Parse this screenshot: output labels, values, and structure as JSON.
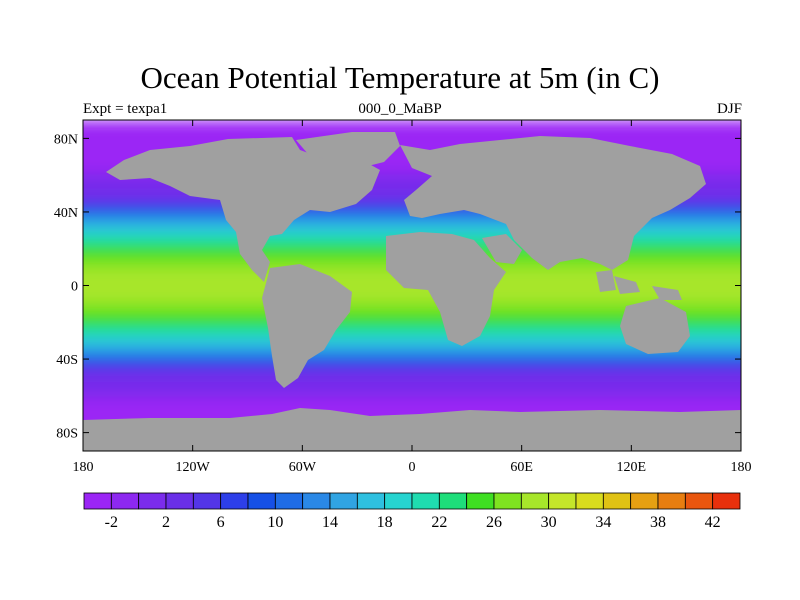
{
  "title": "Ocean Potential Temperature at 5m (in C)",
  "subtitle_left": "Expt = texpa1",
  "subtitle_center": "000_0_MaBP",
  "subtitle_right": "DJF",
  "map": {
    "lat_labels": [
      "80N",
      "40N",
      "0",
      "40S",
      "80S"
    ],
    "lat_values": [
      80,
      40,
      0,
      -40,
      -80
    ],
    "lon_labels": [
      "180",
      "120W",
      "60W",
      "0",
      "60E",
      "120E",
      "180"
    ],
    "lon_values": [
      -180,
      -120,
      -60,
      0,
      60,
      120,
      180
    ],
    "lon_range": [
      -180,
      180
    ],
    "lat_range": [
      -90,
      90
    ],
    "land_color": "#a0a0a0"
  },
  "colorbar": {
    "labels": [
      "-2",
      "2",
      "6",
      "10",
      "14",
      "18",
      "22",
      "26",
      "30",
      "34",
      "38",
      "42"
    ],
    "label_values": [
      -2,
      2,
      6,
      10,
      14,
      18,
      22,
      26,
      30,
      34,
      38,
      42
    ],
    "min": -4,
    "max": 44,
    "step": 2,
    "colors": [
      "#9b25f5",
      "#8d28f0",
      "#7b2cec",
      "#6a2fe8",
      "#5335e7",
      "#2d3fe9",
      "#1650e6",
      "#1f6ce6",
      "#2a88e6",
      "#30a4e3",
      "#2ec0e0",
      "#26d4d0",
      "#1fdcb0",
      "#1ede7a",
      "#3fdf22",
      "#7fe320",
      "#a7e62a",
      "#c4e62a",
      "#d9dc1e",
      "#e0c214",
      "#e6a012",
      "#e87e10",
      "#e9560e",
      "#e8300c"
    ]
  }
}
